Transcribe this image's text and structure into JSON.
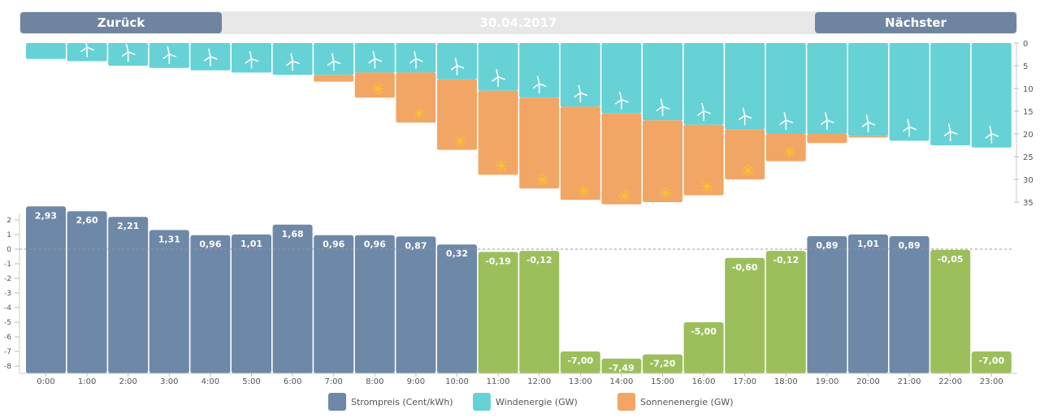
{
  "nav": {
    "back_label": "Zurück",
    "next_label": "Nächster",
    "date": "30.04.2017"
  },
  "colors": {
    "price_positive": "#6e88a8",
    "price_negative": "#9cbf5c",
    "wind": "#66d2d6",
    "solar": "#f2a665",
    "nav_button": "#6e84a0",
    "solar_icon": "#f7c22f"
  },
  "icons": {
    "wind_bar_icon": "wind-turbine-icon",
    "solar_bar_icon": "sun-icon"
  },
  "chart_data": [
    {
      "type": "bar",
      "description_role": "energy",
      "categories": [
        "0:00",
        "1:00",
        "2:00",
        "3:00",
        "4:00",
        "5:00",
        "6:00",
        "7:00",
        "8:00",
        "9:00",
        "10:00",
        "11:00",
        "12:00",
        "13:00",
        "14:00",
        "15:00",
        "16:00",
        "17:00",
        "18:00",
        "19:00",
        "20:00",
        "21:00",
        "22:00",
        "23:00"
      ],
      "stacked": true,
      "inverted_y": true,
      "series": [
        {
          "name": "Windenergie (GW)",
          "values": [
            3.5,
            4,
            5,
            5.5,
            6,
            6.5,
            7,
            7,
            6.5,
            6.5,
            8,
            10.5,
            12,
            14,
            15.5,
            17,
            18,
            19,
            20,
            20,
            20.5,
            21.5,
            22.5,
            23
          ]
        },
        {
          "name": "Sonnenenergie (GW)",
          "values": [
            0,
            0,
            0,
            0,
            0,
            0,
            0,
            1.5,
            5.5,
            11,
            15.5,
            18.5,
            20,
            20.5,
            20,
            18,
            15.5,
            11,
            6,
            2,
            0.3,
            0,
            0,
            0
          ]
        }
      ],
      "yticks": [
        0,
        5,
        10,
        15,
        20,
        25,
        30,
        35
      ],
      "ylim": [
        0,
        35
      ]
    },
    {
      "type": "bar",
      "description_role": "price",
      "series": [
        {
          "name": "Strompreis (Cent/kWh)",
          "values": [
            2.93,
            2.6,
            2.21,
            1.31,
            0.96,
            1.01,
            1.68,
            0.96,
            0.96,
            0.87,
            0.32,
            -0.19,
            -0.12,
            -7.0,
            -7.49,
            -7.2,
            -5.0,
            -0.6,
            -0.12,
            0.89,
            1.01,
            0.89,
            -0.05,
            -7.0
          ],
          "labels": [
            "2,93",
            "2,60",
            "2,21",
            "1,31",
            "0,96",
            "1,01",
            "1,68",
            "0,96",
            "0,96",
            "0,87",
            "0,32",
            "-0,19",
            "-0,12",
            "-7,00",
            "-7,49",
            "-7,20",
            "-5,00",
            "-0,60",
            "-0,12",
            "0,89",
            "1,01",
            "0,89",
            "-0,05",
            "-7,00"
          ]
        }
      ],
      "yticks": [
        2,
        1,
        0,
        -1,
        -2,
        -3,
        -4,
        -5,
        -6,
        -7,
        -8
      ],
      "ylim": [
        -8.5,
        3
      ]
    }
  ],
  "legend": [
    {
      "label": "Strompreis (Cent/kWh)",
      "color": "#6e88a8"
    },
    {
      "label": "Windenergie (GW)",
      "color": "#66d2d6"
    },
    {
      "label": "Sonnenenergie (GW)",
      "color": "#f2a665"
    }
  ]
}
